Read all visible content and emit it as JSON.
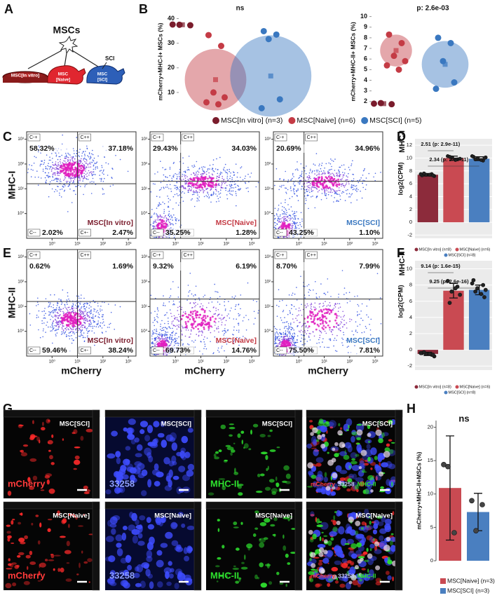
{
  "panel_labels": [
    "A",
    "B",
    "C",
    "D",
    "E",
    "F",
    "G",
    "H"
  ],
  "schematic": {
    "title": "MSCs",
    "sci": "SCI",
    "groups": [
      "MSC[In vitro]",
      "MSC",
      "[Naive]",
      "MSC",
      "[SCI]"
    ]
  },
  "flow": {
    "x_label": "mCherry",
    "xlim": [
      0.1,
      2000
    ],
    "ylim": [
      0.1,
      2000
    ],
    "ticks": [
      {
        "value": 1,
        "label": "10⁰"
      },
      {
        "value": 10,
        "label": "10¹"
      },
      {
        "value": 100,
        "label": "10²"
      },
      {
        "value": 1000,
        "label": "10³"
      }
    ],
    "gates": [
      "C-+",
      "C++",
      "C--",
      "C+-"
    ],
    "rows": [
      {
        "y_label": "MHC-I",
        "plots": [
          {
            "name": "MSC[In vitro]",
            "color": "#7a1c2c",
            "quadrants": [
              "58.32%",
              "37.18%",
              "2.02%",
              "2.47%"
            ]
          },
          {
            "name": "MSC[Naive]",
            "color": "#c43b45",
            "quadrants": [
              "29.43%",
              "34.03%",
              "35.25%",
              "1.28%"
            ]
          },
          {
            "name": "MSC[SCI]",
            "color": "#3a78c0",
            "quadrants": [
              "20.69%",
              "34.96%",
              "43.25%",
              "1.10%"
            ]
          }
        ]
      },
      {
        "y_label": "MHC-II",
        "plots": [
          {
            "name": "MSC[In vitro]",
            "color": "#7a1c2c",
            "quadrants": [
              "0.62%",
              "1.69%",
              "59.46%",
              "38.24%"
            ]
          },
          {
            "name": "MSC[Naive]",
            "color": "#c43b45",
            "quadrants": [
              "9.32%",
              "6.19%",
              "69.73%",
              "14.76%"
            ]
          },
          {
            "name": "MSC[SCI]",
            "color": "#3a78c0",
            "quadrants": [
              "8.70%",
              "7.99%",
              "75.50%",
              "7.81%"
            ]
          }
        ]
      }
    ]
  },
  "microscopy": {
    "rows": [
      {
        "group": "MSC[SCI]",
        "channels": [
          "mCherry",
          "33258",
          "MHC-II"
        ]
      },
      {
        "group": "MSC[Naive]",
        "channels": [
          "mCherry",
          "33258",
          "MHC-II"
        ]
      }
    ]
  },
  "chart_data": [
    {
      "type": "dot",
      "title": "ns",
      "y_label": "mCherry+MHC-I+ MSCs (%)",
      "ylim": [
        2,
        43
      ],
      "yticks": [
        10,
        20,
        30,
        40
      ],
      "legend": true,
      "series": [
        {
          "name": "MSC[In vitro] (n=3)",
          "color": "#7a1c2c",
          "values": [
            37.6,
            37.3,
            37.5
          ],
          "mean": 37.5,
          "sd": 0.2
        },
        {
          "name": "MSC[Naive] (n=6)",
          "color": "#c43b45",
          "values": [
            33.3,
            28.9,
            10,
            8,
            6,
            5.2
          ],
          "mean": 15.2,
          "sd": 12.5
        },
        {
          "name": "MSC[SCI] (n=5)",
          "color": "#3a78c0",
          "values": [
            34.9,
            33.5,
            31.7,
            7.2,
            3.6
          ],
          "mean": 16.7,
          "sd": 16.5
        }
      ]
    },
    {
      "type": "dot",
      "title": "p: 2.6e-03",
      "y_label": "mCherry+MHC-II+ MSCs (%)",
      "ylim": [
        1,
        10.5
      ],
      "yticks": [
        2,
        3,
        4,
        5,
        6,
        7,
        8,
        9,
        10
      ],
      "legend": false,
      "series": [
        {
          "color": "#7a1c2c",
          "values": [
            1.8,
            1.75,
            1.85
          ],
          "mean": 1.8,
          "sd": 0.05
        },
        {
          "color": "#c43b45",
          "values": [
            8.3,
            7.5,
            6.3,
            5.8,
            5.4,
            5.0
          ],
          "mean": 6.8,
          "sd": 1.5
        },
        {
          "color": "#3a78c0",
          "values": [
            8.0,
            7.5,
            5.8,
            3.8,
            3.2
          ],
          "mean": 5.5,
          "sd": 2.2
        }
      ]
    },
    {
      "type": "bar",
      "title": "MHC-I",
      "y_label": "log2(CPM)",
      "ylim": [
        -2.5,
        13
      ],
      "yticks": [
        -2,
        0,
        2,
        4,
        6,
        8,
        10,
        12
      ],
      "annotations": [
        "2.51 (p: 2.9e-11)",
        "2.34 (p: 2.7e-11)"
      ],
      "series": [
        {
          "name": "MSC[In vitro] (n=8)",
          "color": "#8c2b3b",
          "values": [
            7.4
          ],
          "errors": [
            0.2
          ],
          "points": [
            7.3,
            7.5,
            7.4,
            7.2,
            7.6,
            7.4,
            7.3,
            7.5
          ]
        },
        {
          "name": "MSC[Naive] (n=6)",
          "color": "#c94a52",
          "values": [
            10.0
          ],
          "errors": [
            0.3
          ],
          "points": [
            10.3,
            9.8,
            10.1,
            9.9,
            10.2,
            9.7
          ]
        },
        {
          "name": "MSC[SCI] (n=8)",
          "color": "#4a7fc0",
          "values": [
            9.9
          ],
          "errors": [
            0.3
          ],
          "points": [
            10.2,
            9.6,
            9.9,
            10.1,
            9.8,
            9.7,
            10.0,
            10.3
          ]
        }
      ]
    },
    {
      "type": "bar",
      "title": "MHC-II",
      "y_label": "log2(CPM)",
      "ylim": [
        -2.5,
        11
      ],
      "yticks": [
        -2,
        0,
        2,
        4,
        6,
        8,
        10
      ],
      "annotations": [
        "9.14 (p: 1.6e-15)",
        "9.25 (p: 2.6e-16)"
      ],
      "series": [
        {
          "name": "MSC[In vitro] (n=8)",
          "color": "#8c2b3b",
          "values": [
            -0.5
          ],
          "errors": [
            0.2
          ],
          "points": [
            -0.4,
            -0.6,
            -0.5,
            -0.8,
            -0.3,
            -0.5,
            -0.6,
            -0.4
          ]
        },
        {
          "name": "MSC[Naive] (n=6)",
          "color": "#c94a52",
          "values": [
            7.3
          ],
          "errors": [
            0.9
          ],
          "points": [
            8.5,
            7.8,
            7.2,
            6.8,
            5.8,
            7.6
          ]
        },
        {
          "name": "MSC[SCI] (n=8)",
          "color": "#4a7fc0",
          "values": [
            7.4
          ],
          "errors": [
            0.6
          ],
          "points": [
            8.6,
            8.0,
            7.6,
            7.4,
            7.2,
            6.9,
            6.5,
            8.2
          ]
        }
      ]
    },
    {
      "type": "bar",
      "title": "ns",
      "y_label": "mCherry+MHC-II+MSCs (%)",
      "ylim": [
        0,
        21
      ],
      "yticks": [
        0,
        5,
        10,
        15,
        20
      ],
      "series": [
        {
          "name": "MSC[Naive] (n=3)",
          "color": "#c94a52",
          "values": [
            10.9
          ],
          "errors": [
            7.8
          ],
          "points": [
            14.4,
            4.2,
            14.1
          ]
        },
        {
          "name": "MSC[SCI] (n=3)",
          "color": "#4a7fc0",
          "values": [
            7.3
          ],
          "errors": [
            2.8
          ],
          "points": [
            9.0,
            8.4,
            4.5
          ]
        }
      ]
    }
  ]
}
